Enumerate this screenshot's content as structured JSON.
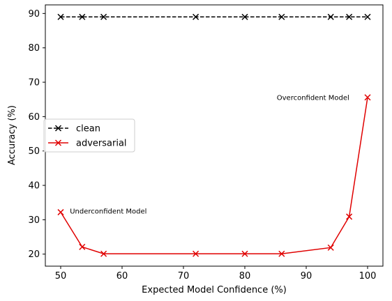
{
  "chart_data": {
    "type": "line",
    "title": "",
    "xlabel": "Expected Model Confidence (%)",
    "ylabel": "Accuracy (%)",
    "xlim": [
      47.5,
      102.5
    ],
    "ylim": [
      16.5,
      92.5
    ],
    "xticks": [
      50,
      60,
      70,
      80,
      90,
      100
    ],
    "yticks": [
      20,
      30,
      40,
      50,
      60,
      70,
      80,
      90
    ],
    "grid": false,
    "legend_position": "center-left",
    "series": [
      {
        "name": "clean",
        "color": "#000000",
        "linestyle": "dashed",
        "marker": "x",
        "x": [
          50,
          53.5,
          57,
          72,
          80,
          86,
          94,
          97,
          100
        ],
        "y": [
          89,
          89,
          89,
          89,
          89,
          89,
          89,
          89,
          89
        ]
      },
      {
        "name": "adversarial",
        "color": "#e00000",
        "linestyle": "solid",
        "marker": "x",
        "x": [
          50,
          53.5,
          57,
          72,
          80,
          86,
          94,
          97,
          100
        ],
        "y": [
          32.2,
          22.1,
          20.1,
          20.1,
          20.1,
          20.1,
          21.9,
          30.9,
          65.6
        ]
      }
    ],
    "annotations": [
      {
        "text": "Underconfident Model",
        "x": 51.5,
        "y": 32.5
      },
      {
        "text": "Overconfident Model",
        "x": 85.2,
        "y": 65.5
      }
    ]
  }
}
